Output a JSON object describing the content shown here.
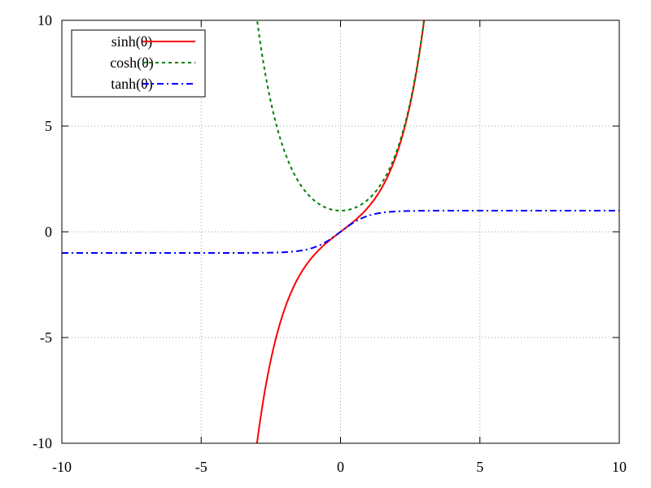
{
  "chart_data": {
    "type": "line",
    "title": "",
    "xlabel": "",
    "ylabel": "",
    "xlim": [
      -10,
      10
    ],
    "ylim": [
      -10,
      10
    ],
    "grid": true,
    "legend_position": "top-left",
    "x_ticks": [
      -10,
      -5,
      0,
      5,
      10
    ],
    "y_ticks": [
      -10,
      -5,
      0,
      5,
      10
    ],
    "x_tick_labels": [
      "-10",
      "-5",
      "0",
      "5",
      "10"
    ],
    "y_tick_labels": [
      "-10",
      "-5",
      "0",
      "5",
      "10"
    ],
    "series": [
      {
        "name": "sinh(θ)",
        "function": "sinh",
        "color": "#ff0000",
        "dash": "solid",
        "x": [
          -3.0,
          -2.5,
          -2.0,
          -1.5,
          -1.0,
          -0.5,
          0.0,
          0.5,
          1.0,
          1.5,
          2.0,
          2.5,
          3.0
        ],
        "y": [
          -10.02,
          -6.05,
          -3.63,
          -2.13,
          -1.18,
          -0.52,
          0.0,
          0.52,
          1.18,
          2.13,
          3.63,
          6.05,
          10.02
        ]
      },
      {
        "name": "cosh(θ)",
        "function": "cosh",
        "color": "#008000",
        "dash": "dash",
        "x": [
          -3.0,
          -2.5,
          -2.0,
          -1.5,
          -1.0,
          -0.5,
          0.0,
          0.5,
          1.0,
          1.5,
          2.0,
          2.5,
          3.0
        ],
        "y": [
          10.07,
          6.13,
          3.76,
          2.35,
          1.54,
          1.13,
          1.0,
          1.13,
          1.54,
          2.35,
          3.76,
          6.13,
          10.07
        ]
      },
      {
        "name": "tanh(θ)",
        "function": "tanh",
        "color": "#0000ff",
        "dash": "dashdot",
        "x": [
          -10,
          -5,
          -3,
          -2,
          -1,
          0,
          1,
          2,
          3,
          5,
          10
        ],
        "y": [
          -1.0,
          -1.0,
          -0.995,
          -0.964,
          -0.762,
          0.0,
          0.762,
          0.964,
          0.995,
          1.0,
          1.0
        ]
      }
    ]
  }
}
